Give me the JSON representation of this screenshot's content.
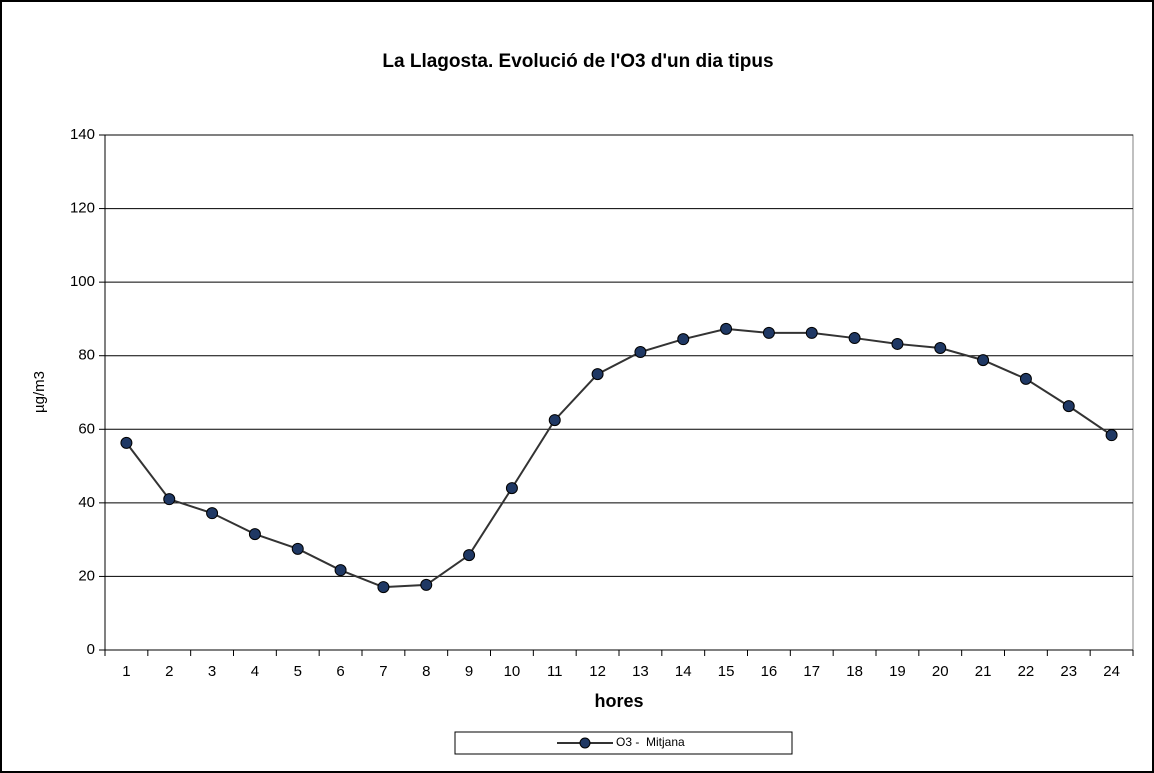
{
  "chart_data": {
    "type": "line",
    "title": "La Llagosta. Evolució de l'O3 d'un dia tipus",
    "x_label": "hores",
    "y_label": "µg/m3",
    "categories": [
      "1",
      "2",
      "3",
      "4",
      "5",
      "6",
      "7",
      "8",
      "9",
      "10",
      "11",
      "12",
      "13",
      "14",
      "15",
      "16",
      "17",
      "18",
      "19",
      "20",
      "21",
      "22",
      "23",
      "24"
    ],
    "series": [
      {
        "name": "O3 -  Mitjana",
        "color": "#1f3864",
        "line_color": "#333333",
        "values": [
          56.3,
          41.0,
          37.2,
          31.5,
          27.5,
          21.7,
          17.1,
          17.7,
          25.8,
          44.0,
          62.5,
          75.0,
          81.0,
          84.5,
          87.3,
          86.2,
          86.2,
          84.8,
          83.2,
          82.1,
          78.8,
          73.7,
          66.3,
          58.4
        ]
      }
    ],
    "ylim": [
      0,
      140
    ],
    "yticks": [
      0,
      20,
      40,
      60,
      80,
      100,
      120,
      140
    ],
    "grid": true,
    "legend": "bottom"
  }
}
